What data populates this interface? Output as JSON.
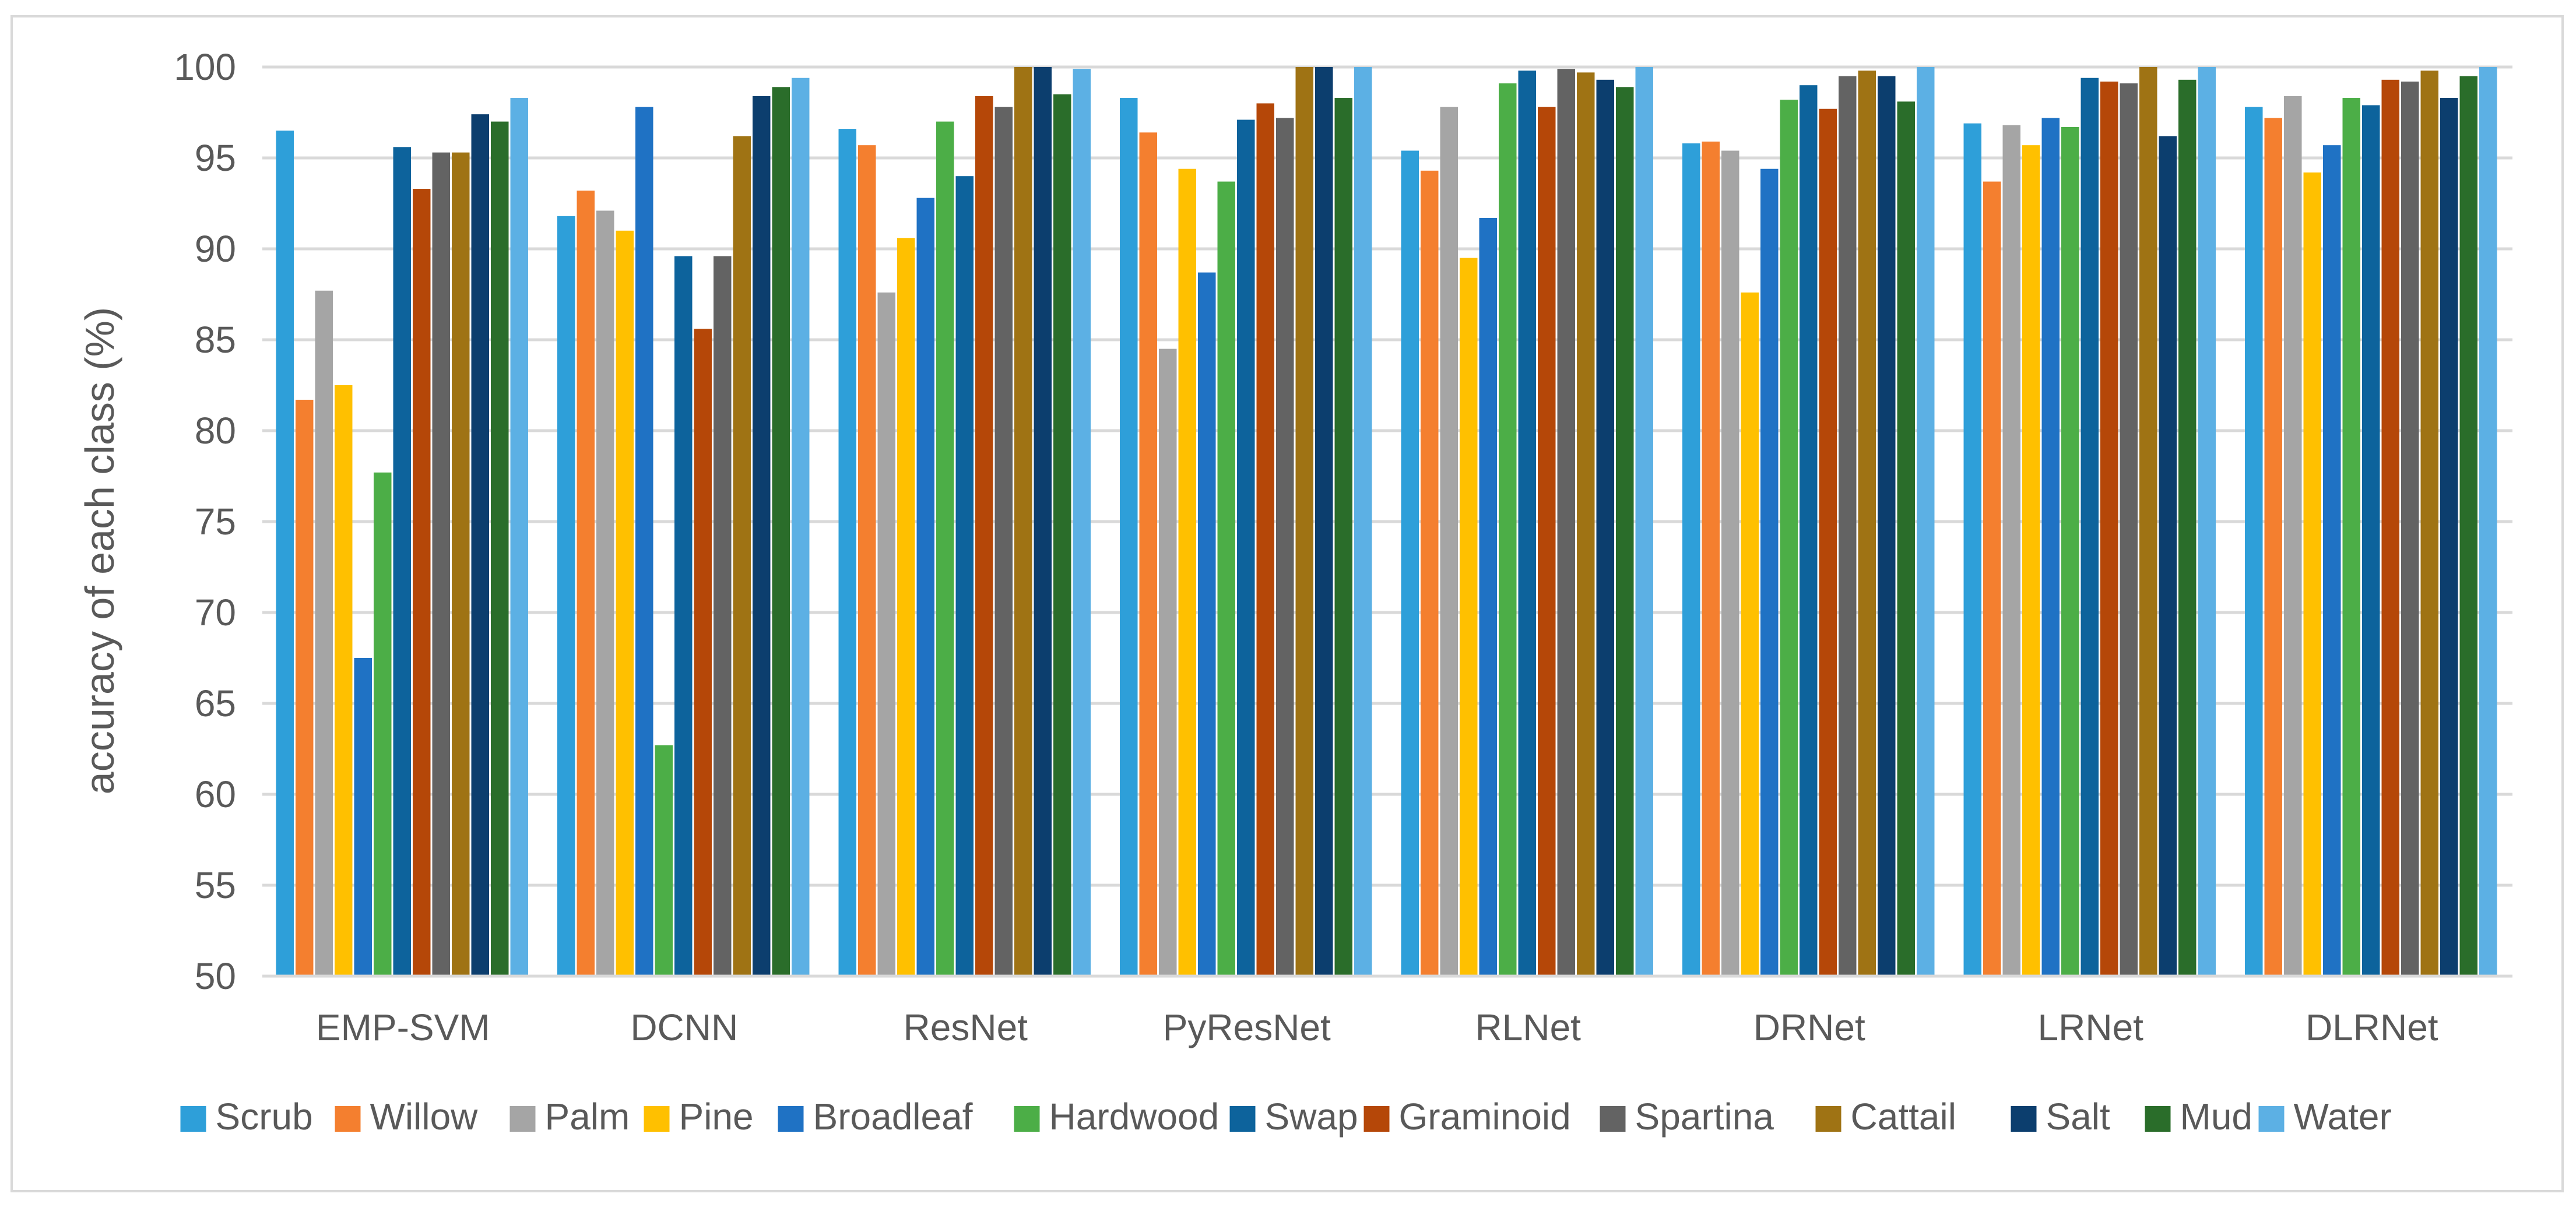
{
  "chart_data": {
    "type": "bar",
    "title": "",
    "xlabel": "",
    "ylabel": "accuracy of each class (%)",
    "ylim": [
      50,
      100
    ],
    "yticks": [
      50,
      55,
      60,
      65,
      70,
      75,
      80,
      85,
      90,
      95,
      100
    ],
    "grid": true,
    "legend_position": "bottom",
    "categories": [
      "EMP-SVM",
      "DCNN",
      "ResNet",
      "PyResNet",
      "RLNet",
      "DRNet",
      "LRNet",
      "DLRNet"
    ],
    "series": [
      {
        "name": "Scrub",
        "color": "#2e9fd9",
        "values": [
          96.5,
          91.8,
          96.6,
          98.3,
          95.4,
          95.8,
          96.9,
          97.8
        ]
      },
      {
        "name": "Willow",
        "color": "#f47f2f",
        "values": [
          81.7,
          93.2,
          95.7,
          96.4,
          94.3,
          95.9,
          93.7,
          97.2
        ]
      },
      {
        "name": "Palm",
        "color": "#a5a5a5",
        "values": [
          87.7,
          92.1,
          87.6,
          84.5,
          97.8,
          95.4,
          96.8,
          98.4
        ]
      },
      {
        "name": "Pine",
        "color": "#ffc000",
        "values": [
          82.5,
          91.0,
          90.6,
          94.4,
          89.5,
          87.6,
          95.7,
          94.2
        ]
      },
      {
        "name": "Broadleaf",
        "color": "#1f72c4",
        "values": [
          67.5,
          97.8,
          92.8,
          88.7,
          91.7,
          94.4,
          97.2,
          95.7
        ]
      },
      {
        "name": "Hardwood",
        "color": "#4cae47",
        "values": [
          77.7,
          62.7,
          97.0,
          93.7,
          99.1,
          98.2,
          96.7,
          98.3
        ]
      },
      {
        "name": "Swap",
        "color": "#0d639c",
        "values": [
          95.6,
          89.6,
          94.0,
          97.1,
          99.8,
          99.0,
          99.4,
          97.9
        ]
      },
      {
        "name": "Graminoid",
        "color": "#b54708",
        "values": [
          93.3,
          85.6,
          98.4,
          98.0,
          97.8,
          97.7,
          99.2,
          99.3
        ]
      },
      {
        "name": "Spartina",
        "color": "#636363",
        "values": [
          95.3,
          89.6,
          97.8,
          97.2,
          99.9,
          99.5,
          99.1,
          99.2
        ]
      },
      {
        "name": "Cattail",
        "color": "#9f7314",
        "values": [
          95.3,
          96.2,
          100.0,
          100.0,
          99.7,
          99.8,
          100.0,
          99.8
        ]
      },
      {
        "name": "Salt",
        "color": "#0c3e6e",
        "values": [
          97.4,
          98.4,
          100.0,
          100.0,
          99.3,
          99.5,
          96.2,
          98.3
        ]
      },
      {
        "name": "Mud",
        "color": "#2a6d2a",
        "values": [
          97.0,
          98.9,
          98.5,
          98.3,
          98.9,
          98.1,
          99.3,
          99.5
        ]
      },
      {
        "name": "Water",
        "color": "#5cb0e4",
        "values": [
          98.3,
          99.4,
          99.9,
          100.0,
          100.0,
          100.0,
          100.0,
          100.0
        ]
      }
    ]
  }
}
